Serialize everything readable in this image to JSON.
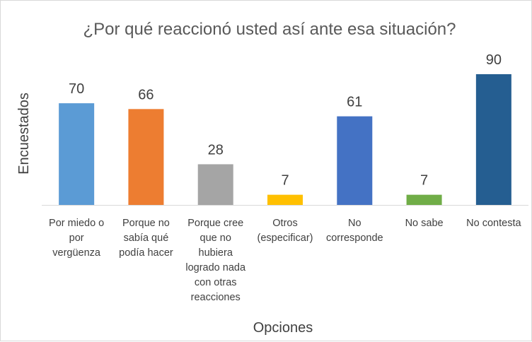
{
  "chart_data": {
    "type": "bar",
    "title": "¿Por qué reaccionó usted así ante esa situación?",
    "xlabel": "Opciones",
    "ylabel": "Encuestados",
    "categories": [
      [
        "Por miedo o",
        "por",
        "vergüenza"
      ],
      [
        "Porque no",
        "sabía qué",
        "podía hacer"
      ],
      [
        "Porque cree",
        "que no",
        "hubiera",
        "logrado nada",
        "con otras",
        "reacciones"
      ],
      [
        "Otros",
        "(especificar)"
      ],
      [
        "No",
        "corresponde"
      ],
      [
        "No sabe"
      ],
      [
        "No contesta"
      ]
    ],
    "values": [
      70,
      66,
      28,
      7,
      61,
      7,
      90
    ],
    "colors": [
      "#5b9bd5",
      "#ed7d31",
      "#a5a5a5",
      "#ffc000",
      "#4472c4",
      "#70ad47",
      "#255e91"
    ],
    "ylim": [
      0,
      90
    ],
    "grid": false,
    "legend": "none",
    "data_labels": true
  }
}
